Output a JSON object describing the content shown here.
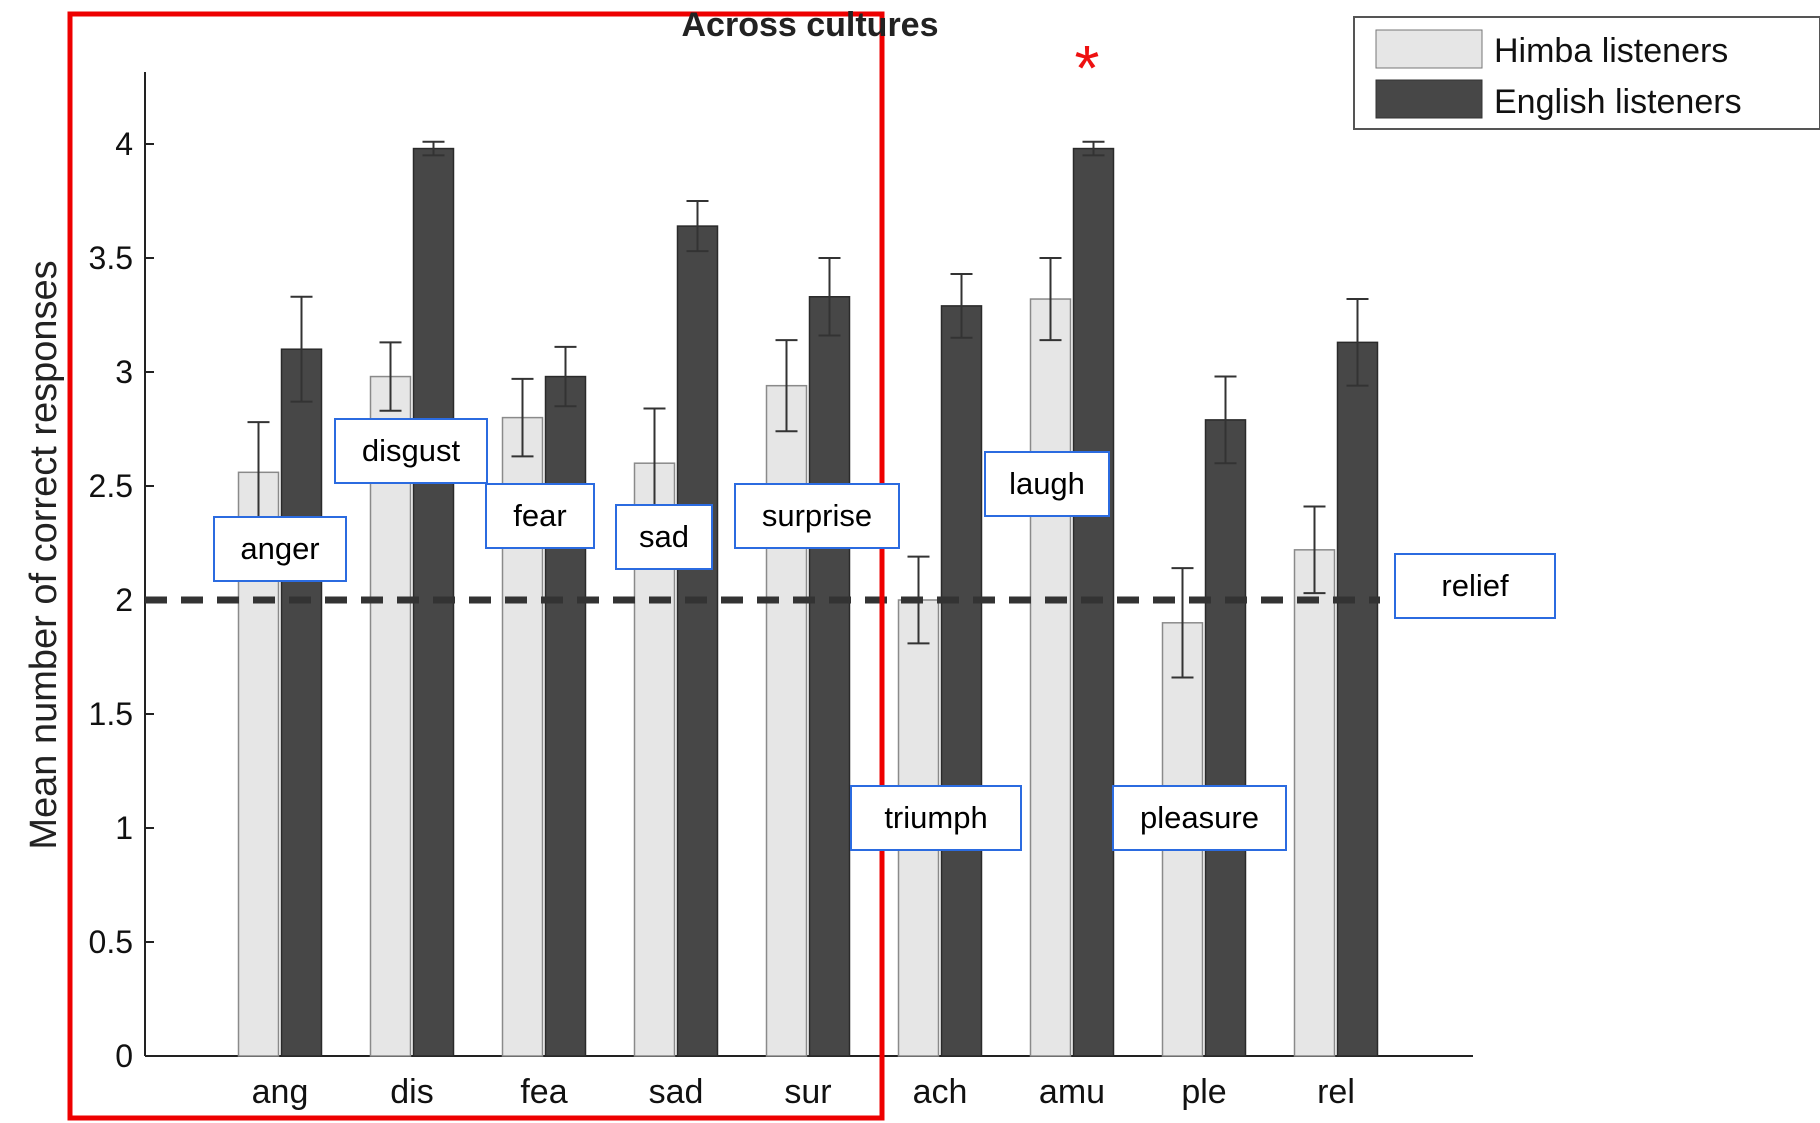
{
  "colors": {
    "himba": "#e6e6e6",
    "english": "#474747",
    "highlight": "#ee0000",
    "annotation_border": "#2b6be0",
    "baseline": "#333333"
  },
  "highlight_marker": "*",
  "chart_data": {
    "type": "bar",
    "title": "Across cultures",
    "ylabel": "Mean number of correct responses",
    "xlabel": "",
    "categories": [
      "ang",
      "dis",
      "fea",
      "sad",
      "sur",
      "ach",
      "amu",
      "ple",
      "rel"
    ],
    "series": [
      {
        "name": "Himba listeners",
        "values": [
          2.56,
          2.98,
          2.8,
          2.6,
          2.94,
          2.0,
          3.32,
          1.9,
          2.22
        ],
        "errors": [
          0.22,
          0.15,
          0.17,
          0.24,
          0.2,
          0.19,
          0.18,
          0.24,
          0.19
        ]
      },
      {
        "name": "English listeners",
        "values": [
          3.1,
          3.98,
          2.98,
          3.64,
          3.33,
          3.29,
          3.98,
          2.79,
          3.13
        ],
        "errors": [
          0.23,
          0.03,
          0.13,
          0.11,
          0.17,
          0.14,
          0.03,
          0.19,
          0.19
        ]
      }
    ],
    "ylim": [
      0,
      4.4
    ],
    "yticks": [
      "0",
      "0.5",
      "1",
      "1.5",
      "2",
      "2.5",
      "3",
      "3.5",
      "4"
    ],
    "reference_line": 2,
    "grid": false,
    "legend_position": "top-right",
    "highlighted_categories": [
      "ang",
      "dis",
      "fea",
      "sad",
      "sur"
    ],
    "marked_category": "amu",
    "annotations": [
      "anger",
      "disgust",
      "fear",
      "sad",
      "surprise",
      "triumph",
      "laugh",
      "pleasure",
      "relief"
    ]
  }
}
